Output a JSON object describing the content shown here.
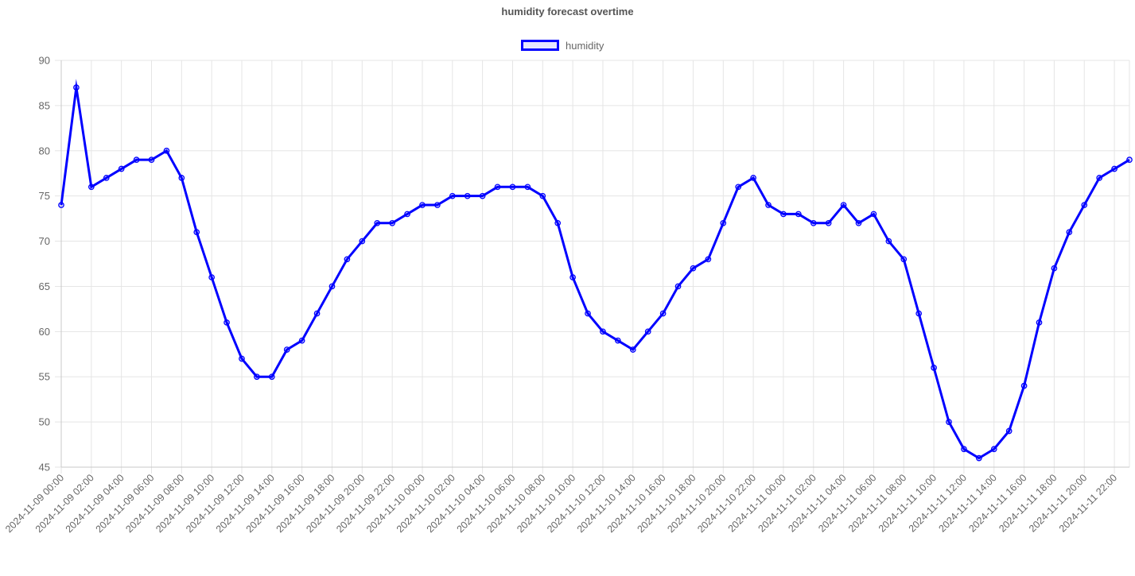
{
  "chart_data": {
    "type": "line",
    "title": "humidity forecast overtime",
    "xlabel": "",
    "ylabel": "",
    "ylim": [
      45,
      90
    ],
    "yticks": [
      45,
      50,
      55,
      60,
      65,
      70,
      75,
      80,
      85,
      90
    ],
    "grid": true,
    "legend_position": "top-center",
    "colors": {
      "line": "#0000ff",
      "grid": "#e5e5e5",
      "text": "#666666"
    },
    "x_tick_labels": [
      "2024-11-09 00:00",
      "2024-11-09 02:00",
      "2024-11-09 04:00",
      "2024-11-09 06:00",
      "2024-11-09 08:00",
      "2024-11-09 10:00",
      "2024-11-09 12:00",
      "2024-11-09 14:00",
      "2024-11-09 16:00",
      "2024-11-09 18:00",
      "2024-11-09 20:00",
      "2024-11-09 22:00",
      "2024-11-10 00:00",
      "2024-11-10 02:00",
      "2024-11-10 04:00",
      "2024-11-10 06:00",
      "2024-11-10 08:00",
      "2024-11-10 10:00",
      "2024-11-10 12:00",
      "2024-11-10 14:00",
      "2024-11-10 16:00",
      "2024-11-10 18:00",
      "2024-11-10 20:00",
      "2024-11-10 22:00",
      "2024-11-11 00:00",
      "2024-11-11 02:00",
      "2024-11-11 04:00",
      "2024-11-11 06:00",
      "2024-11-11 08:00",
      "2024-11-11 10:00",
      "2024-11-11 12:00",
      "2024-11-11 14:00",
      "2024-11-11 16:00",
      "2024-11-11 18:00",
      "2024-11-11 20:00",
      "2024-11-11 22:00"
    ],
    "x_start": "2024-11-09 00:00",
    "x_step_hours": 1,
    "series": [
      {
        "name": "humidity",
        "values": [
          74,
          87,
          76,
          77,
          78,
          79,
          79,
          80,
          77,
          71,
          66,
          61,
          57,
          55,
          55,
          58,
          59,
          62,
          65,
          68,
          70,
          72,
          72,
          73,
          74,
          74,
          75,
          75,
          75,
          76,
          76,
          76,
          75,
          72,
          66,
          62,
          60,
          59,
          58,
          60,
          62,
          65,
          67,
          68,
          72,
          76,
          77,
          74,
          73,
          73,
          72,
          72,
          74,
          72,
          73,
          70,
          68,
          62,
          56,
          50,
          47,
          46,
          47,
          49,
          54,
          61,
          67,
          71,
          74,
          77,
          78,
          79
        ]
      }
    ]
  }
}
